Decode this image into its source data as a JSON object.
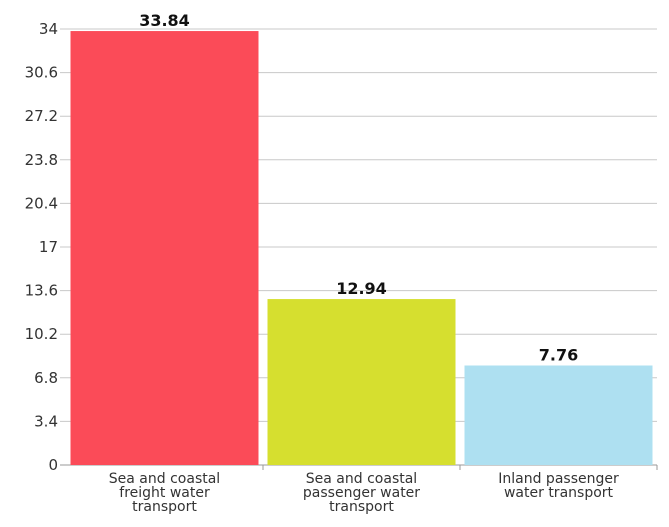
{
  "chart_data": {
    "type": "bar",
    "categories": [
      "Sea and coastal freight water transport",
      "Sea and coastal passenger water transport",
      "Inland passenger water transport"
    ],
    "category_lines": [
      [
        "Sea and coastal",
        "freight water",
        "transport"
      ],
      [
        "Sea and coastal",
        "passenger water",
        "transport"
      ],
      [
        "Inland passenger",
        "water transport"
      ]
    ],
    "values": [
      33.84,
      12.94,
      7.76
    ],
    "data_labels": [
      "33.84",
      "12.94",
      "7.76"
    ],
    "colors": [
      "#fb4b58",
      "#d6df2f",
      "#aee0f1"
    ],
    "yticks": [
      "0",
      "3.4",
      "6.8",
      "10.2",
      "13.6",
      "17",
      "20.4",
      "23.8",
      "27.2",
      "30.6",
      "34"
    ],
    "ylim": [
      0,
      34
    ],
    "grid": true
  }
}
